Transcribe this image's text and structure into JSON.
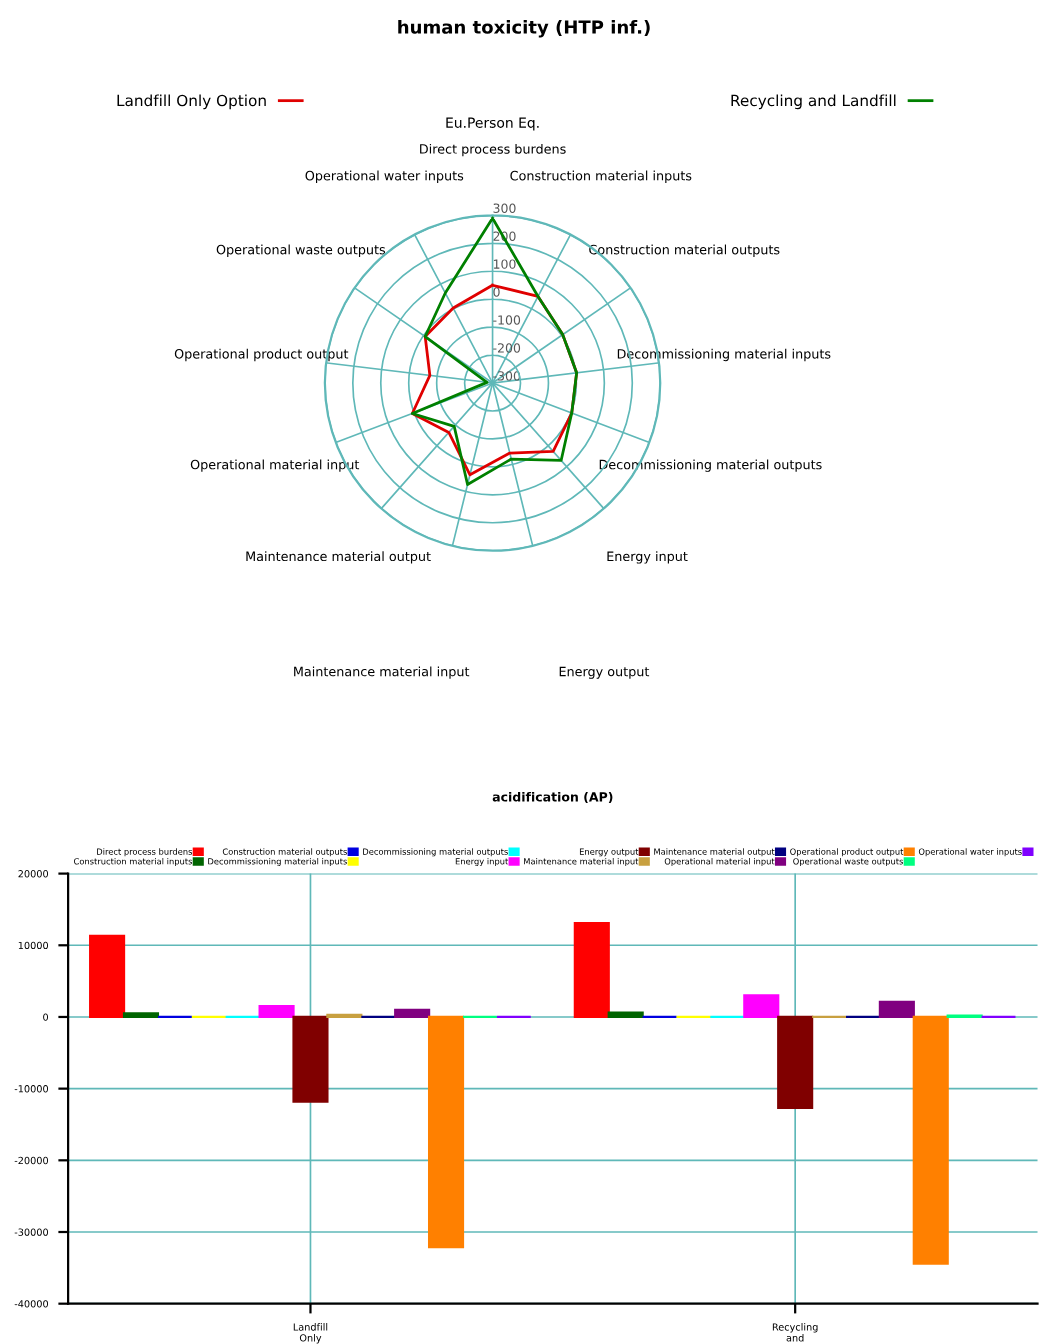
{
  "chart_data": [
    {
      "type": "radar",
      "title": "human toxicity (HTP inf.)",
      "subtitle": "Eu.Person Eq.",
      "categories": [
        "Direct process burdens",
        "Construction material inputs",
        "Construction material outputs",
        "Decommissioning material inputs",
        "Decommissioning material outputs",
        "Energy input",
        "Energy output",
        "Maintenance material input",
        "Maintenance material output",
        "Operational material input",
        "Operational product output",
        "Operational waste outputs",
        "Operational water inputs"
      ],
      "series": [
        {
          "name": "Landfill Only Option",
          "color": "#e00000",
          "values": [
            50,
            50,
            5,
            3,
            3,
            27,
            -42,
            38,
            -64,
            7,
            -74,
            -7,
            3
          ]
        },
        {
          "name": "Recycling and Landfill",
          "color": "#008000",
          "values": [
            290,
            50,
            5,
            3,
            3,
            70,
            -20,
            74,
            -93,
            7,
            -280,
            -7,
            64
          ]
        }
      ],
      "ylim": [
        -300,
        300
      ],
      "yticks": [
        -300,
        -200,
        -100,
        0,
        100,
        200,
        300
      ],
      "grid": true,
      "legend": "top"
    },
    {
      "type": "bar",
      "title": "acidification (AP)",
      "categories": [
        "Landfill\nOnly\nOption",
        "Recycling\nand\nLandfill"
      ],
      "series": [
        {
          "name": "Direct process burdens",
          "color": "#ff0000",
          "values": [
            11300,
            13100
          ]
        },
        {
          "name": "Construction material inputs",
          "color": "#006400",
          "values": [
            500,
            600
          ]
        },
        {
          "name": "Construction material outputs",
          "color": "#0000e0",
          "values": [
            0,
            0
          ]
        },
        {
          "name": "Decommissioning material inputs",
          "color": "#ffff00",
          "values": [
            0,
            0
          ]
        },
        {
          "name": "Decommissioning material outputs",
          "color": "#00ffff",
          "values": [
            0,
            0
          ]
        },
        {
          "name": "Energy input",
          "color": "#ff00ff",
          "values": [
            1500,
            3000
          ]
        },
        {
          "name": "Energy output",
          "color": "#800000",
          "values": [
            -11800,
            -12700
          ]
        },
        {
          "name": "Maintenance material input",
          "color": "#c8a040",
          "values": [
            300,
            0
          ]
        },
        {
          "name": "Maintenance material output",
          "color": "#000080",
          "values": [
            0,
            0
          ]
        },
        {
          "name": "Operational material input",
          "color": "#800080",
          "values": [
            1000,
            2100
          ]
        },
        {
          "name": "Operational product output",
          "color": "#ff8000",
          "values": [
            -32100,
            -34400
          ]
        },
        {
          "name": "Operational waste outputs",
          "color": "#00ff80",
          "values": [
            0,
            200
          ]
        },
        {
          "name": "Operational water inputs",
          "color": "#8000ff",
          "values": [
            0,
            0
          ]
        }
      ],
      "ylim": [
        -40000,
        20000
      ],
      "yticks": [
        -40000,
        -30000,
        -20000,
        -10000,
        0,
        10000,
        20000
      ],
      "grid": true,
      "legend": "top"
    }
  ]
}
